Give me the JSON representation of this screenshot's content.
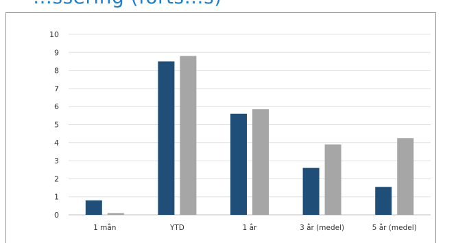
{
  "heading": {
    "text": "…ssering (forts…s)"
  },
  "chart_data": {
    "type": "bar",
    "title": "",
    "xlabel": "",
    "ylabel": "",
    "categories": [
      "1 mån",
      "YTD",
      "1 år",
      "3 år (medel)",
      "5 år (medel)"
    ],
    "series": [
      {
        "values": [
          0.8,
          8.5,
          5.6,
          2.6,
          1.55
        ]
      },
      {
        "values": [
          0.1,
          8.8,
          5.85,
          3.9,
          4.25
        ]
      }
    ],
    "ylim": [
      0,
      10
    ],
    "yticks": [
      0,
      1,
      2,
      3,
      4,
      5,
      6,
      7,
      8,
      9,
      10
    ],
    "grid": true,
    "legend": "none",
    "colors": [
      "#1f4e79",
      "#a6a6a6"
    ]
  }
}
